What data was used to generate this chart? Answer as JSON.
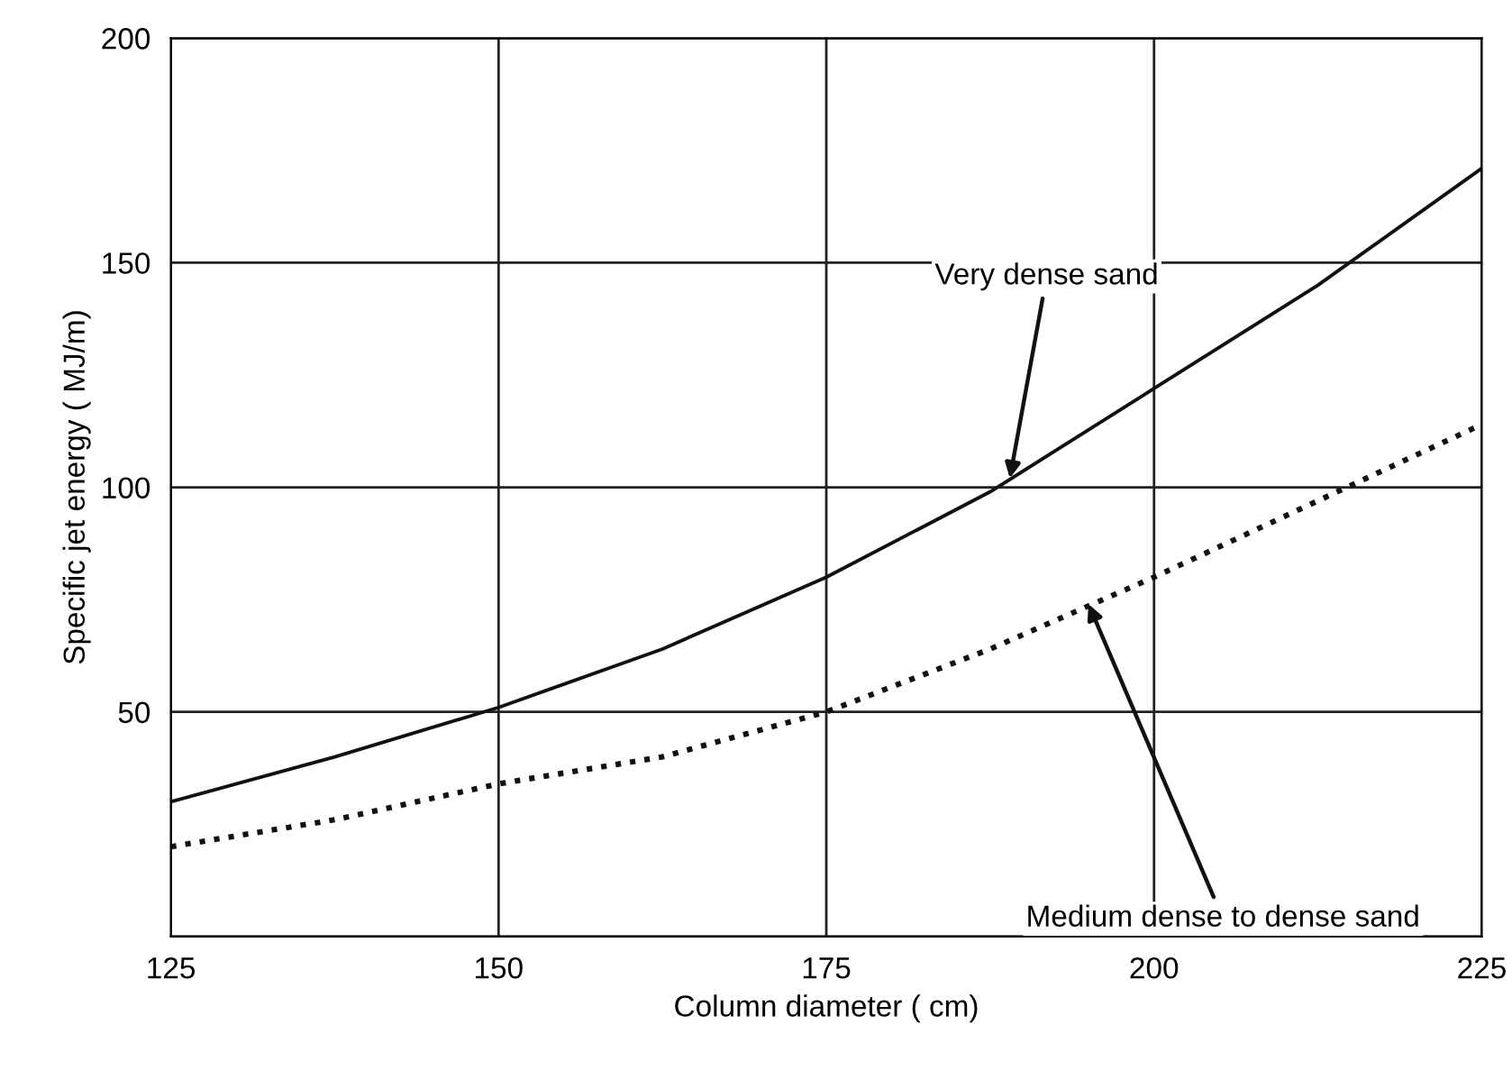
{
  "chart_data": {
    "type": "line",
    "xlabel": "Column diameter ( cm)",
    "ylabel": "Specific jet energy ( MJ/m)",
    "x": [
      125,
      137.5,
      150,
      162.5,
      175,
      187.5,
      200,
      212.5,
      225
    ],
    "series": [
      {
        "color": "#111111",
        "line_style": "solid",
        "values": [
          30,
          40,
          51,
          64,
          80,
          99,
          122,
          145,
          171
        ]
      },
      {
        "color": "#111111",
        "line_style": "dotted",
        "values": [
          20,
          26,
          34,
          40,
          50,
          64,
          80,
          97,
          114
        ]
      }
    ],
    "xlim": [
      125,
      225
    ],
    "xticks": [
      125,
      150,
      175,
      200,
      225
    ],
    "ylim": [
      0,
      200
    ],
    "yticks": [
      {
        "value": 0,
        "label": null
      },
      50,
      100,
      150,
      200
    ],
    "grid": true,
    "legend": false,
    "annotations": [
      {
        "text": "Very dense sand",
        "x": 189,
        "y": 102
      },
      {
        "text": "Medium dense to dense sand",
        "x": 195,
        "y": 74
      }
    ]
  }
}
